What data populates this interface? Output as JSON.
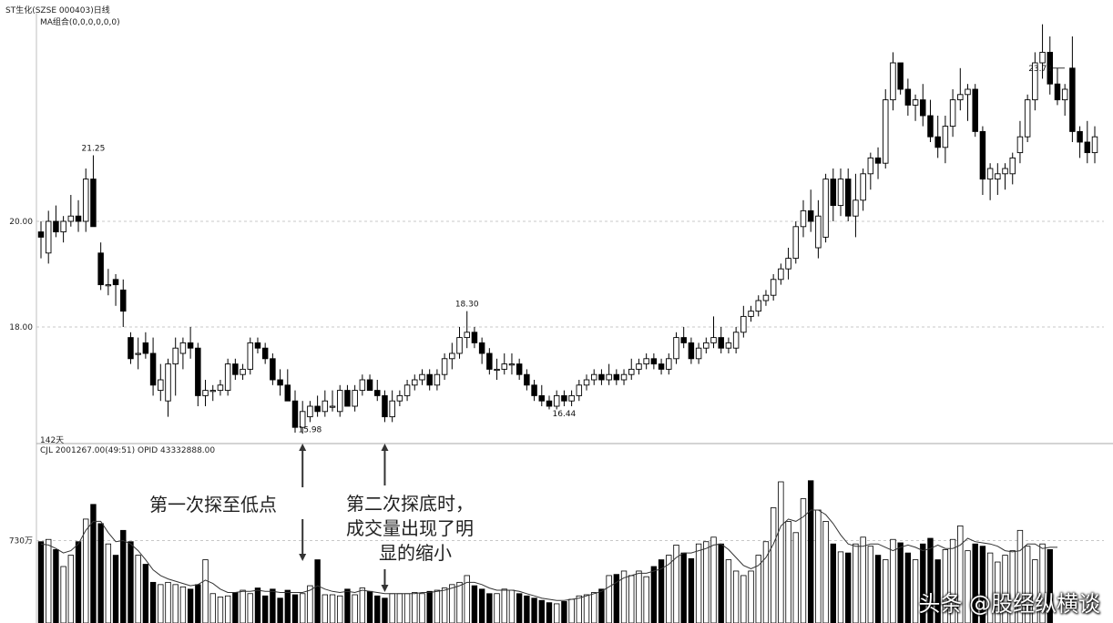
{
  "header": {
    "title": "ST生化(SZSE 000403)日线",
    "indicator": "MA组合(0,0,0,0,0,0)",
    "days_label": "142天",
    "volume_info": "CJL  2001267.00(49:51)   OPID  43332888.00"
  },
  "annotations": {
    "first": "第一次探至低点",
    "second_line1": "第二次探底时，",
    "second_line2": "成交量出现了明",
    "second_line3": "显的缩小"
  },
  "watermark": "头条 @股经纵横谈",
  "colors": {
    "up": "#ffffff",
    "down": "#000000",
    "line": "#333333",
    "grid": "#c8c8c8"
  },
  "chart_data": [
    {
      "type": "candlestick",
      "title": "ST生化(SZSE 000403)日线",
      "y_ticks": [
        {
          "value": 20.0,
          "label": "20.00"
        },
        {
          "value": 18.0,
          "label": "18.00"
        }
      ],
      "ylim": [
        15.8,
        24.2
      ],
      "annotations": [
        {
          "index": 7,
          "label": "21.25",
          "position": "above"
        },
        {
          "index": 36,
          "label": "15.98",
          "position": "below"
        },
        {
          "index": 57,
          "label": "18.30",
          "position": "above"
        },
        {
          "index": 70,
          "label": "16.44",
          "position": "below"
        },
        {
          "index": 136,
          "label": "23.73",
          "position": "above"
        }
      ],
      "candles": [
        [
          19.8,
          20.0,
          19.3,
          19.7
        ],
        [
          19.4,
          20.2,
          19.2,
          20.0
        ],
        [
          20.0,
          20.3,
          19.7,
          19.8
        ],
        [
          19.8,
          20.1,
          19.6,
          20.0
        ],
        [
          20.0,
          20.5,
          19.9,
          20.1
        ],
        [
          20.1,
          20.4,
          19.8,
          20.0
        ],
        [
          20.0,
          21.0,
          19.8,
          20.8
        ],
        [
          20.8,
          21.25,
          19.9,
          19.9
        ],
        [
          19.4,
          19.6,
          18.7,
          18.8
        ],
        [
          18.8,
          19.1,
          18.6,
          18.8
        ],
        [
          18.9,
          19.0,
          18.4,
          18.8
        ],
        [
          18.7,
          18.9,
          18.0,
          18.3
        ],
        [
          17.8,
          17.9,
          17.3,
          17.4
        ],
        [
          17.5,
          17.8,
          17.2,
          17.5
        ],
        [
          17.7,
          17.9,
          17.4,
          17.5
        ],
        [
          17.5,
          17.8,
          16.7,
          16.9
        ],
        [
          16.8,
          17.3,
          16.6,
          17.0
        ],
        [
          16.6,
          17.4,
          16.3,
          17.3
        ],
        [
          17.3,
          17.8,
          16.7,
          17.6
        ],
        [
          17.5,
          17.8,
          17.2,
          17.7
        ],
        [
          17.7,
          18.0,
          17.4,
          17.6
        ],
        [
          17.6,
          17.7,
          16.5,
          16.7
        ],
        [
          16.7,
          17.0,
          16.5,
          16.8
        ],
        [
          16.8,
          16.9,
          16.6,
          16.8
        ],
        [
          16.8,
          17.0,
          16.7,
          16.9
        ],
        [
          16.8,
          17.4,
          16.7,
          17.3
        ],
        [
          17.3,
          17.4,
          17.0,
          17.1
        ],
        [
          17.1,
          17.3,
          17.0,
          17.2
        ],
        [
          17.2,
          17.8,
          17.1,
          17.7
        ],
        [
          17.7,
          17.8,
          17.5,
          17.6
        ],
        [
          17.6,
          17.7,
          17.3,
          17.4
        ],
        [
          17.4,
          17.5,
          16.9,
          17.0
        ],
        [
          17.0,
          17.2,
          16.7,
          16.9
        ],
        [
          16.9,
          17.2,
          16.6,
          16.6
        ],
        [
          16.6,
          16.8,
          16.0,
          16.1
        ],
        [
          16.1,
          16.6,
          15.98,
          16.4
        ],
        [
          16.3,
          16.6,
          16.2,
          16.5
        ],
        [
          16.5,
          16.7,
          16.3,
          16.4
        ],
        [
          16.4,
          16.8,
          16.3,
          16.6
        ],
        [
          16.5,
          16.8,
          16.4,
          16.5
        ],
        [
          16.4,
          16.9,
          16.3,
          16.8
        ],
        [
          16.8,
          16.9,
          16.5,
          16.5
        ],
        [
          16.5,
          16.9,
          16.4,
          16.8
        ],
        [
          16.8,
          17.1,
          16.7,
          17.0
        ],
        [
          17.0,
          17.1,
          16.8,
          16.8
        ],
        [
          16.8,
          17.0,
          16.6,
          16.7
        ],
        [
          16.7,
          16.8,
          16.2,
          16.3
        ],
        [
          16.3,
          16.8,
          16.2,
          16.6
        ],
        [
          16.6,
          16.8,
          16.5,
          16.7
        ],
        [
          16.7,
          17.0,
          16.6,
          16.9
        ],
        [
          16.9,
          17.1,
          16.8,
          17.0
        ],
        [
          17.0,
          17.2,
          16.9,
          17.1
        ],
        [
          17.1,
          17.2,
          16.8,
          16.9
        ],
        [
          16.9,
          17.2,
          16.8,
          17.1
        ],
        [
          17.1,
          17.5,
          17.0,
          17.4
        ],
        [
          17.4,
          17.7,
          17.2,
          17.5
        ],
        [
          17.5,
          18.0,
          17.4,
          17.8
        ],
        [
          17.8,
          18.3,
          17.6,
          17.9
        ],
        [
          17.9,
          18.0,
          17.6,
          17.7
        ],
        [
          17.7,
          17.8,
          17.3,
          17.5
        ],
        [
          17.5,
          17.6,
          17.1,
          17.2
        ],
        [
          17.2,
          17.4,
          17.0,
          17.2
        ],
        [
          17.2,
          17.5,
          17.1,
          17.3
        ],
        [
          17.3,
          17.5,
          17.1,
          17.3
        ],
        [
          17.3,
          17.4,
          17.0,
          17.1
        ],
        [
          17.1,
          17.2,
          16.8,
          16.9
        ],
        [
          16.9,
          17.0,
          16.6,
          16.7
        ],
        [
          16.7,
          16.9,
          16.5,
          16.6
        ],
        [
          16.6,
          16.7,
          16.44,
          16.5
        ],
        [
          16.5,
          16.8,
          16.44,
          16.7
        ],
        [
          16.7,
          16.8,
          16.5,
          16.6
        ],
        [
          16.6,
          16.8,
          16.5,
          16.7
        ],
        [
          16.7,
          17.0,
          16.6,
          16.9
        ],
        [
          16.9,
          17.1,
          16.8,
          17.0
        ],
        [
          17.0,
          17.2,
          16.9,
          17.1
        ],
        [
          17.1,
          17.2,
          16.9,
          17.0
        ],
        [
          17.0,
          17.3,
          16.9,
          17.1
        ],
        [
          17.1,
          17.2,
          16.9,
          17.0
        ],
        [
          17.0,
          17.2,
          16.9,
          17.1
        ],
        [
          17.1,
          17.4,
          17.0,
          17.2
        ],
        [
          17.2,
          17.4,
          17.1,
          17.3
        ],
        [
          17.3,
          17.5,
          17.2,
          17.4
        ],
        [
          17.4,
          17.5,
          17.2,
          17.3
        ],
        [
          17.3,
          17.4,
          17.1,
          17.2
        ],
        [
          17.2,
          17.5,
          17.1,
          17.4
        ],
        [
          17.4,
          17.9,
          17.3,
          17.8
        ],
        [
          17.8,
          18.0,
          17.6,
          17.7
        ],
        [
          17.7,
          17.8,
          17.3,
          17.4
        ],
        [
          17.4,
          17.7,
          17.3,
          17.6
        ],
        [
          17.6,
          17.8,
          17.5,
          17.7
        ],
        [
          17.7,
          18.2,
          17.6,
          17.8
        ],
        [
          17.8,
          18.0,
          17.5,
          17.6
        ],
        [
          17.6,
          17.8,
          17.5,
          17.7
        ],
        [
          17.6,
          18.0,
          17.5,
          17.9
        ],
        [
          17.9,
          18.4,
          17.8,
          18.2
        ],
        [
          18.2,
          18.4,
          18.1,
          18.3
        ],
        [
          18.3,
          18.6,
          18.2,
          18.5
        ],
        [
          18.5,
          18.7,
          18.4,
          18.6
        ],
        [
          18.6,
          19.0,
          18.5,
          18.9
        ],
        [
          18.9,
          19.2,
          18.8,
          19.1
        ],
        [
          19.1,
          19.5,
          18.9,
          19.3
        ],
        [
          19.3,
          20.0,
          19.2,
          19.9
        ],
        [
          19.9,
          20.4,
          19.7,
          20.2
        ],
        [
          20.2,
          20.6,
          19.8,
          20.0
        ],
        [
          19.5,
          20.4,
          19.3,
          20.1
        ],
        [
          19.7,
          20.9,
          19.6,
          20.8
        ],
        [
          20.8,
          21.0,
          20.0,
          20.3
        ],
        [
          20.3,
          21.0,
          20.1,
          20.8
        ],
        [
          20.8,
          21.0,
          20.0,
          20.1
        ],
        [
          20.1,
          20.9,
          19.7,
          20.4
        ],
        [
          20.4,
          21.0,
          20.2,
          20.9
        ],
        [
          20.9,
          21.3,
          20.6,
          21.2
        ],
        [
          21.2,
          21.4,
          20.8,
          21.1
        ],
        [
          21.1,
          22.5,
          21.0,
          22.3
        ],
        [
          22.3,
          23.2,
          22.1,
          23.0
        ],
        [
          23.0,
          23.0,
          22.4,
          22.5
        ],
        [
          22.5,
          22.7,
          22.0,
          22.2
        ],
        [
          22.2,
          22.4,
          21.9,
          22.3
        ],
        [
          22.3,
          22.6,
          21.8,
          22.0
        ],
        [
          22.0,
          22.3,
          21.5,
          21.6
        ],
        [
          21.6,
          22.0,
          21.2,
          21.4
        ],
        [
          21.4,
          22.0,
          21.1,
          21.8
        ],
        [
          21.8,
          22.5,
          21.6,
          22.3
        ],
        [
          22.3,
          22.9,
          22.1,
          22.4
        ],
        [
          22.4,
          22.6,
          21.9,
          22.5
        ],
        [
          22.5,
          22.6,
          21.6,
          21.7
        ],
        [
          21.7,
          21.8,
          20.5,
          20.8
        ],
        [
          20.8,
          21.1,
          20.4,
          21.0
        ],
        [
          20.8,
          21.1,
          20.5,
          20.9
        ],
        [
          20.9,
          21.1,
          20.6,
          21.0
        ],
        [
          20.9,
          21.3,
          20.7,
          21.2
        ],
        [
          21.3,
          21.9,
          21.1,
          21.6
        ],
        [
          21.6,
          22.4,
          21.5,
          22.3
        ],
        [
          22.3,
          23.2,
          22.1,
          23.0
        ],
        [
          23.0,
          23.73,
          22.7,
          23.2
        ],
        [
          23.2,
          23.5,
          22.4,
          22.6
        ],
        [
          22.6,
          22.9,
          22.2,
          22.3
        ],
        [
          22.3,
          22.6,
          22.0,
          22.5
        ],
        [
          22.9,
          23.5,
          21.5,
          21.7
        ],
        [
          21.7,
          21.8,
          21.2,
          21.5
        ],
        [
          21.5,
          21.9,
          21.1,
          21.3
        ],
        [
          21.3,
          21.8,
          21.1,
          21.6
        ]
      ]
    },
    {
      "type": "bar",
      "title": "CJL",
      "y_ticks": [
        {
          "value": 730,
          "label": "730万"
        }
      ],
      "ylim": [
        0,
        1500
      ],
      "values": [
        720,
        740,
        650,
        500,
        600,
        720,
        920,
        1050,
        880,
        700,
        600,
        820,
        720,
        600,
        520,
        360,
        340,
        360,
        340,
        320,
        300,
        340,
        560,
        260,
        230,
        240,
        270,
        290,
        260,
        310,
        240,
        300,
        220,
        290,
        250,
        260,
        330,
        560,
        250,
        250,
        240,
        300,
        250,
        310,
        280,
        240,
        220,
        260,
        260,
        260,
        270,
        260,
        280,
        290,
        310,
        340,
        360,
        420,
        330,
        300,
        260,
        260,
        300,
        290,
        260,
        240,
        220,
        200,
        180,
        170,
        190,
        210,
        240,
        250,
        270,
        300,
        420,
        430,
        460,
        420,
        460,
        410,
        500,
        560,
        600,
        690,
        620,
        570,
        700,
        720,
        760,
        700,
        560,
        460,
        420,
        460,
        600,
        720,
        1020,
        1250,
        900,
        800,
        1100,
        1260,
        1000,
        900,
        700,
        630,
        620,
        700,
        760,
        680,
        600,
        560,
        740,
        710,
        620,
        560,
        700,
        750,
        560,
        650,
        740,
        860,
        640,
        700,
        680,
        620,
        540,
        600,
        640,
        820,
        680,
        560,
        700,
        650
      ],
      "ma_line": [
        700,
        690,
        660,
        620,
        640,
        700,
        820,
        900,
        900,
        800,
        720,
        730,
        700,
        640,
        560,
        470,
        420,
        390,
        370,
        350,
        330,
        340,
        380,
        350,
        300,
        270,
        270,
        280,
        280,
        290,
        280,
        280,
        270,
        270,
        270,
        270,
        290,
        330,
        300,
        280,
        270,
        280,
        270,
        290,
        280,
        270,
        260,
        260,
        260,
        260,
        260,
        270,
        270,
        280,
        290,
        310,
        330,
        360,
        360,
        340,
        310,
        290,
        290,
        290,
        280,
        260,
        240,
        220,
        210,
        200,
        200,
        210,
        220,
        240,
        260,
        280,
        320,
        360,
        400,
        420,
        440,
        440,
        460,
        480,
        520,
        580,
        620,
        620,
        640,
        660,
        690,
        700,
        650,
        580,
        510,
        480,
        510,
        580,
        700,
        860,
        920,
        900,
        940,
        1000,
        1000,
        960,
        880,
        780,
        700,
        680,
        680,
        700,
        700,
        670,
        640,
        670,
        690,
        670,
        640,
        660,
        690,
        660,
        660,
        690,
        750,
        720,
        710,
        700,
        680,
        640,
        630,
        640,
        700,
        700,
        660,
        670,
        670
      ]
    }
  ]
}
